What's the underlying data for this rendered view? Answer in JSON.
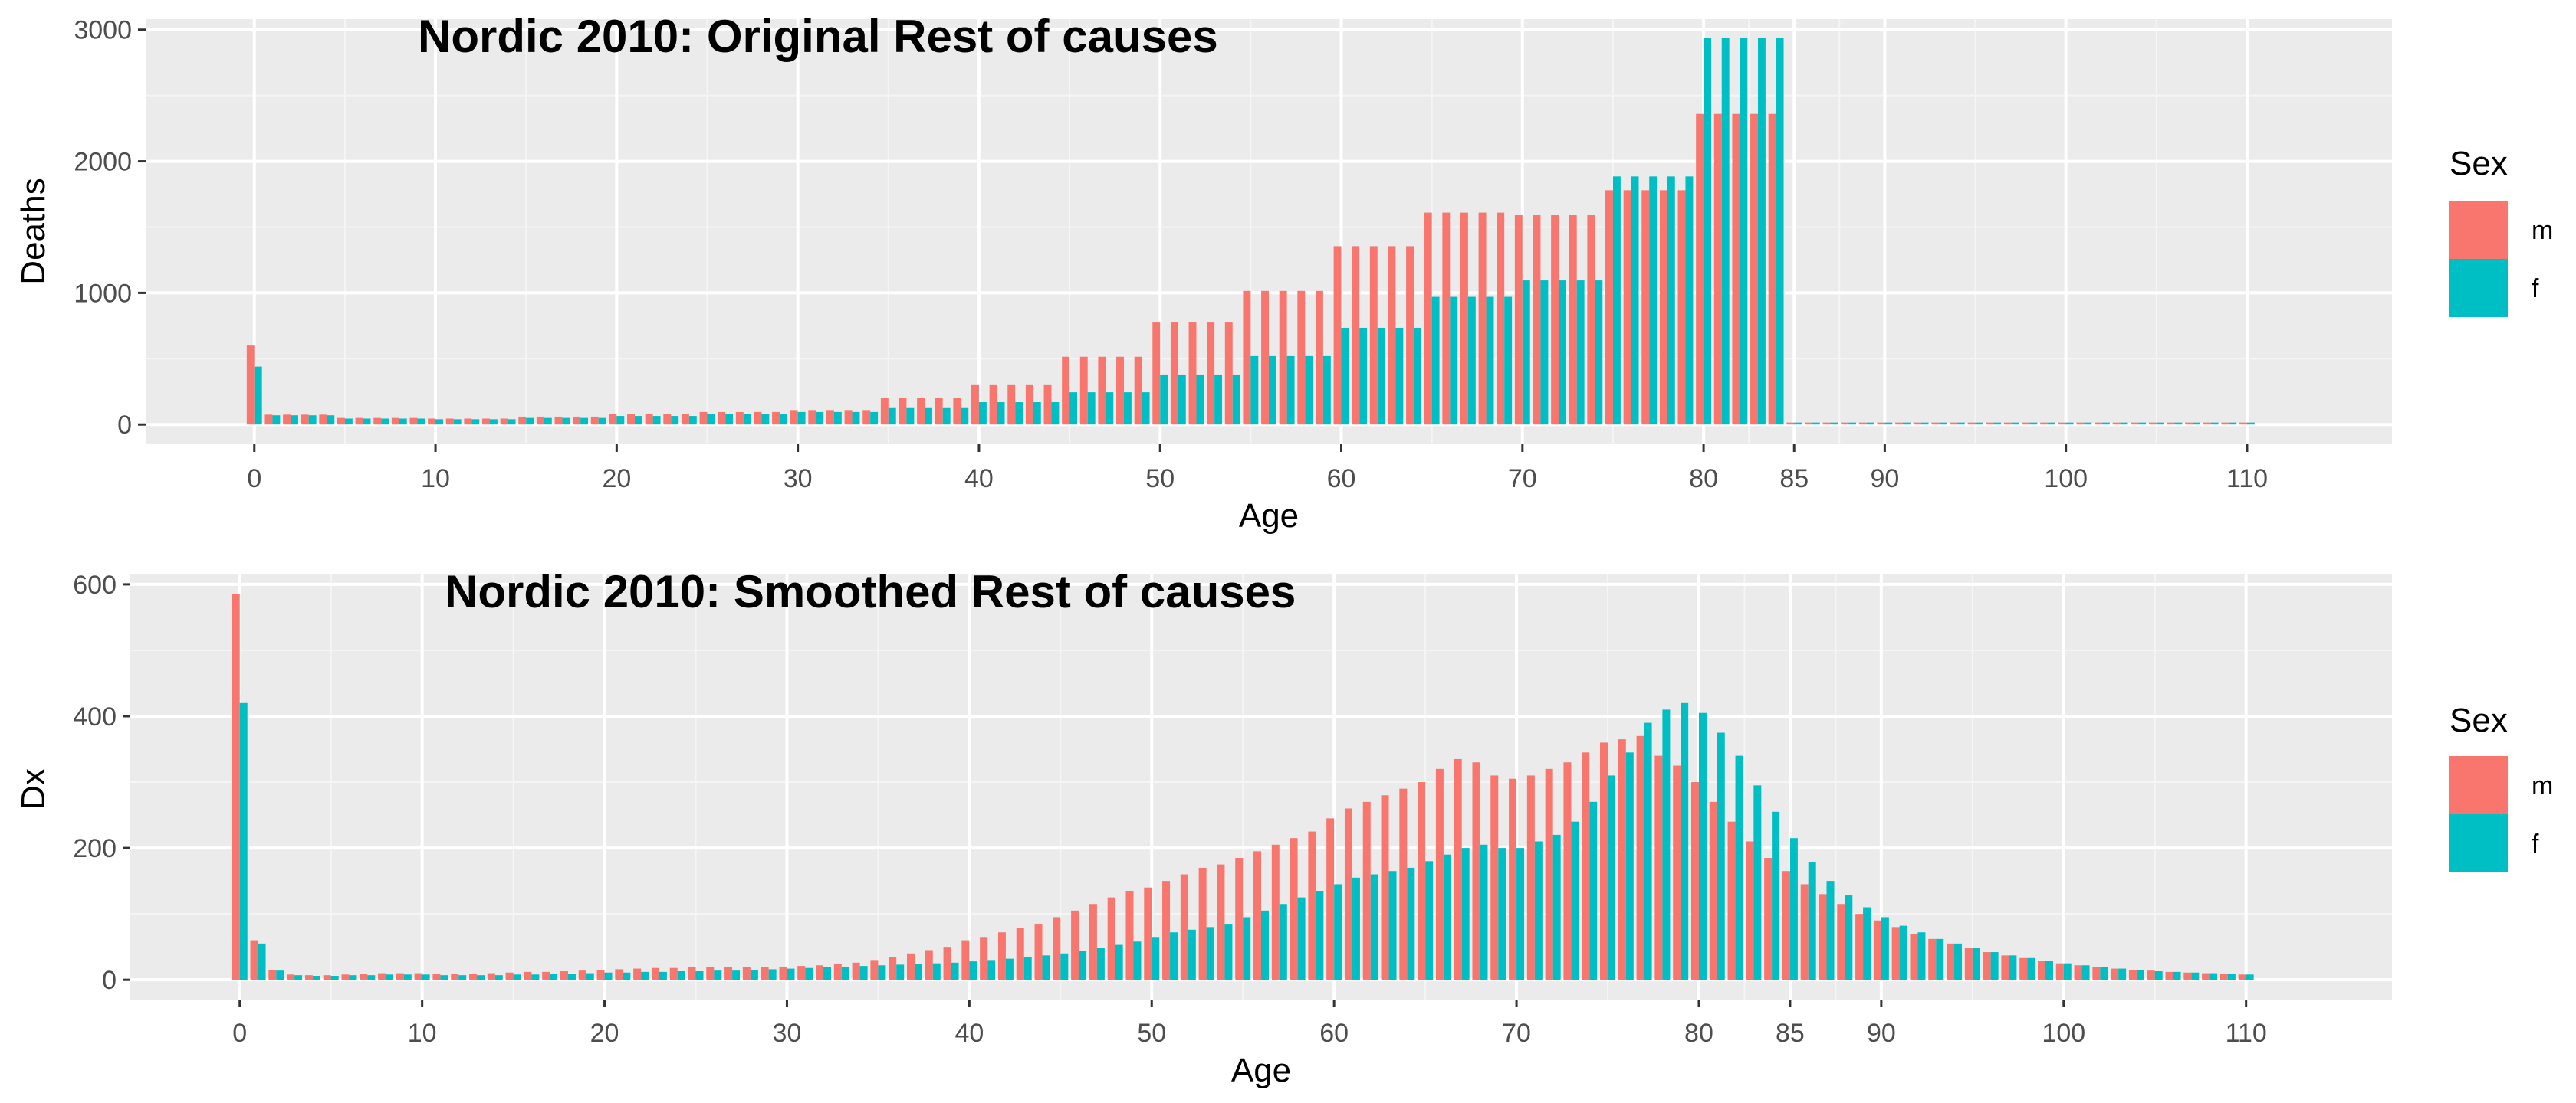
{
  "chart_data": [
    {
      "type": "bar",
      "title": "Nordic 2010: Original Rest of causes",
      "xlabel": "Age",
      "ylabel": "Deaths",
      "xlim": [
        -6,
        118
      ],
      "ylim": [
        -150,
        3080
      ],
      "x_ticks": [
        0,
        10,
        20,
        30,
        40,
        50,
        60,
        70,
        80,
        85,
        90,
        100,
        110
      ],
      "y_ticks": [
        0,
        1000,
        2000,
        3000
      ],
      "grid": true,
      "legend_position": "right",
      "legend": {
        "title": "Sex",
        "labels": [
          "m",
          "f"
        ]
      },
      "ages": [
        0,
        1,
        2,
        3,
        4,
        5,
        6,
        7,
        8,
        9,
        10,
        11,
        12,
        13,
        14,
        15,
        16,
        17,
        18,
        19,
        20,
        21,
        22,
        23,
        24,
        25,
        26,
        27,
        28,
        29,
        30,
        31,
        32,
        33,
        34,
        35,
        36,
        37,
        38,
        39,
        40,
        41,
        42,
        43,
        44,
        45,
        46,
        47,
        48,
        49,
        50,
        51,
        52,
        53,
        54,
        55,
        56,
        57,
        58,
        59,
        60,
        61,
        62,
        63,
        64,
        65,
        66,
        67,
        68,
        69,
        70,
        71,
        72,
        73,
        74,
        75,
        76,
        77,
        78,
        79,
        80,
        81,
        82,
        83,
        84,
        85,
        86,
        87,
        88,
        89,
        90,
        91,
        92,
        93,
        94,
        95,
        96,
        97,
        98,
        99,
        100,
        101,
        102,
        103,
        104,
        105,
        106,
        107,
        108,
        109,
        110
      ],
      "series": [
        {
          "name": "m",
          "color": "#F8766D",
          "values": [
            600,
            75,
            75,
            75,
            75,
            50,
            50,
            50,
            50,
            50,
            45,
            45,
            45,
            45,
            45,
            60,
            60,
            60,
            60,
            60,
            80,
            80,
            80,
            80,
            80,
            95,
            95,
            95,
            95,
            95,
            110,
            110,
            110,
            110,
            110,
            200,
            200,
            200,
            200,
            200,
            305,
            305,
            305,
            305,
            305,
            515,
            515,
            515,
            515,
            515,
            775,
            775,
            775,
            775,
            775,
            1015,
            1015,
            1015,
            1015,
            1015,
            1355,
            1355,
            1355,
            1355,
            1355,
            1610,
            1610,
            1610,
            1610,
            1610,
            1590,
            1590,
            1590,
            1590,
            1590,
            1780,
            1780,
            1780,
            1780,
            1780,
            2360,
            2360,
            2360,
            2360,
            2360,
            15,
            15,
            15,
            15,
            15,
            15,
            15,
            15,
            15,
            15,
            15,
            15,
            15,
            15,
            15,
            15,
            15,
            15,
            15,
            15,
            15,
            15,
            15,
            15,
            15,
            15
          ]
        },
        {
          "name": "f",
          "color": "#00BFC4",
          "values": [
            440,
            70,
            70,
            70,
            70,
            45,
            45,
            45,
            45,
            45,
            40,
            40,
            40,
            40,
            40,
            50,
            50,
            50,
            50,
            50,
            65,
            65,
            65,
            65,
            65,
            80,
            80,
            80,
            80,
            80,
            95,
            95,
            95,
            95,
            95,
            125,
            125,
            125,
            125,
            125,
            170,
            170,
            170,
            170,
            170,
            245,
            245,
            245,
            245,
            245,
            380,
            380,
            380,
            380,
            380,
            520,
            520,
            520,
            520,
            520,
            735,
            735,
            735,
            735,
            735,
            970,
            970,
            970,
            970,
            970,
            1095,
            1095,
            1095,
            1095,
            1095,
            1885,
            1885,
            1885,
            1885,
            1885,
            2935,
            2935,
            2935,
            2935,
            2935,
            15,
            15,
            15,
            15,
            15,
            15,
            15,
            15,
            15,
            15,
            15,
            15,
            15,
            15,
            15,
            15,
            15,
            15,
            15,
            15,
            15,
            15,
            15,
            15,
            15,
            15
          ]
        }
      ]
    },
    {
      "type": "bar",
      "title": "Nordic 2010: Smoothed Rest of causes",
      "xlabel": "Age",
      "ylabel": "Dx",
      "xlim": [
        -6,
        118
      ],
      "ylim": [
        -30,
        615
      ],
      "x_ticks": [
        0,
        10,
        20,
        30,
        40,
        50,
        60,
        70,
        80,
        85,
        90,
        100,
        110
      ],
      "y_ticks": [
        0,
        200,
        400,
        600
      ],
      "grid": true,
      "legend_position": "right",
      "legend": {
        "title": "Sex",
        "labels": [
          "m",
          "f"
        ]
      },
      "ages": [
        0,
        1,
        2,
        3,
        4,
        5,
        6,
        7,
        8,
        9,
        10,
        11,
        12,
        13,
        14,
        15,
        16,
        17,
        18,
        19,
        20,
        21,
        22,
        23,
        24,
        25,
        26,
        27,
        28,
        29,
        30,
        31,
        32,
        33,
        34,
        35,
        36,
        37,
        38,
        39,
        40,
        41,
        42,
        43,
        44,
        45,
        46,
        47,
        48,
        49,
        50,
        51,
        52,
        53,
        54,
        55,
        56,
        57,
        58,
        59,
        60,
        61,
        62,
        63,
        64,
        65,
        66,
        67,
        68,
        69,
        70,
        71,
        72,
        73,
        74,
        75,
        76,
        77,
        78,
        79,
        80,
        81,
        82,
        83,
        84,
        85,
        86,
        87,
        88,
        89,
        90,
        91,
        92,
        93,
        94,
        95,
        96,
        97,
        98,
        99,
        100,
        101,
        102,
        103,
        104,
        105,
        106,
        107,
        108,
        109,
        110
      ],
      "series": [
        {
          "name": "m",
          "color": "#F8766D",
          "values": [
            585,
            60,
            15,
            8,
            7,
            7,
            8,
            9,
            10,
            10,
            10,
            9,
            9,
            9,
            10,
            11,
            12,
            12,
            13,
            14,
            15,
            16,
            17,
            18,
            18,
            19,
            19,
            19,
            19,
            19,
            20,
            21,
            22,
            24,
            26,
            30,
            35,
            40,
            45,
            50,
            60,
            65,
            72,
            79,
            85,
            95,
            105,
            115,
            125,
            135,
            140,
            150,
            160,
            170,
            175,
            185,
            195,
            205,
            215,
            225,
            245,
            260,
            270,
            280,
            290,
            300,
            320,
            335,
            330,
            310,
            305,
            310,
            320,
            330,
            345,
            360,
            365,
            370,
            340,
            325,
            300,
            270,
            240,
            210,
            185,
            165,
            145,
            130,
            115,
            100,
            90,
            80,
            70,
            62,
            55,
            48,
            42,
            37,
            33,
            29,
            25,
            22,
            19,
            17,
            15,
            14,
            12,
            11,
            10,
            9,
            8
          ]
        },
        {
          "name": "f",
          "color": "#00BFC4",
          "values": [
            420,
            55,
            14,
            7,
            6,
            6,
            7,
            7,
            8,
            8,
            8,
            7,
            7,
            7,
            7,
            8,
            8,
            9,
            9,
            10,
            11,
            11,
            12,
            12,
            13,
            13,
            14,
            14,
            15,
            16,
            17,
            18,
            19,
            20,
            21,
            22,
            23,
            24,
            25,
            26,
            28,
            30,
            32,
            34,
            37,
            40,
            44,
            48,
            53,
            58,
            65,
            72,
            76,
            80,
            85,
            95,
            105,
            115,
            125,
            135,
            145,
            155,
            160,
            165,
            170,
            180,
            190,
            200,
            205,
            200,
            200,
            210,
            220,
            240,
            270,
            310,
            345,
            390,
            410,
            420,
            405,
            375,
            340,
            295,
            255,
            215,
            178,
            150,
            128,
            110,
            95,
            82,
            72,
            62,
            55,
            48,
            42,
            37,
            33,
            29,
            25,
            22,
            19,
            17,
            15,
            13,
            12,
            11,
            10,
            9,
            8
          ]
        }
      ]
    }
  ]
}
